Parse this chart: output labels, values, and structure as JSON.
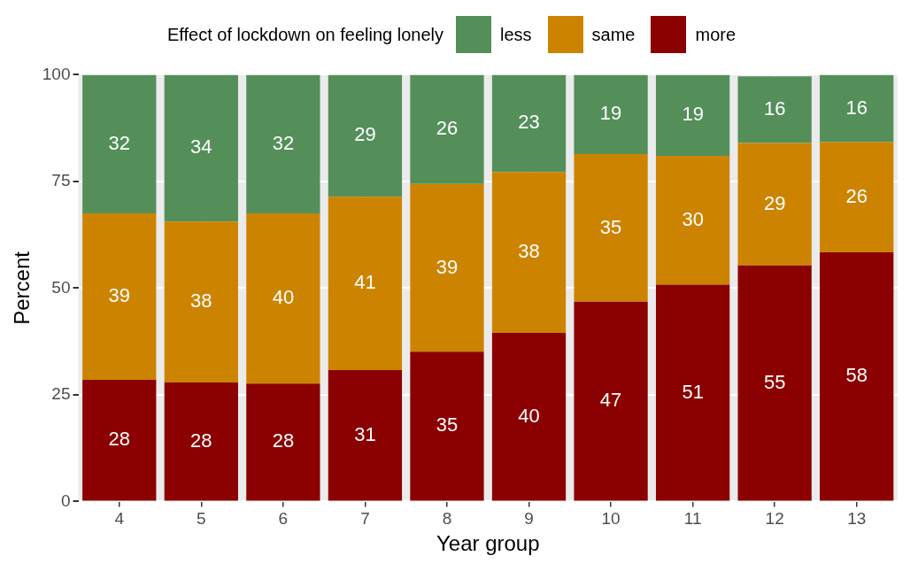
{
  "chart_data": {
    "type": "bar",
    "stacked": true,
    "xlabel": "Year group",
    "ylabel": "Percent",
    "legend_title": "Effect of lockdown on feeling lonely",
    "legend": "top",
    "grid": true,
    "categories": [
      "4",
      "5",
      "6",
      "7",
      "8",
      "9",
      "10",
      "11",
      "12",
      "13"
    ],
    "ylim": [
      0,
      100
    ],
    "yticks": [
      0,
      25,
      50,
      75,
      100
    ],
    "series": [
      {
        "name": "more",
        "color": "#8b0000",
        "values": [
          28.5,
          27.9,
          27.6,
          30.8,
          35.1,
          39.5,
          46.8,
          50.8,
          55.3,
          58.4
        ],
        "value_labels": [
          "28",
          "28",
          "28",
          "31",
          "35",
          "40",
          "47",
          "51",
          "55",
          "58"
        ]
      },
      {
        "name": "same",
        "color": "#cc8400",
        "values": [
          39.0,
          37.7,
          39.9,
          40.6,
          39.3,
          37.7,
          34.6,
          30.2,
          28.7,
          25.8
        ],
        "value_labels": [
          "39",
          "38",
          "40",
          "41",
          "39",
          "38",
          "35",
          "30",
          "29",
          "26"
        ]
      },
      {
        "name": "less",
        "color": "#548f5a",
        "values": [
          32.5,
          34.4,
          32.5,
          28.6,
          25.6,
          22.8,
          18.6,
          19.0,
          15.6,
          15.8
        ],
        "value_labels": [
          "32",
          "34",
          "32",
          "29",
          "26",
          "23",
          "19",
          "19",
          "16",
          "16"
        ]
      }
    ]
  }
}
